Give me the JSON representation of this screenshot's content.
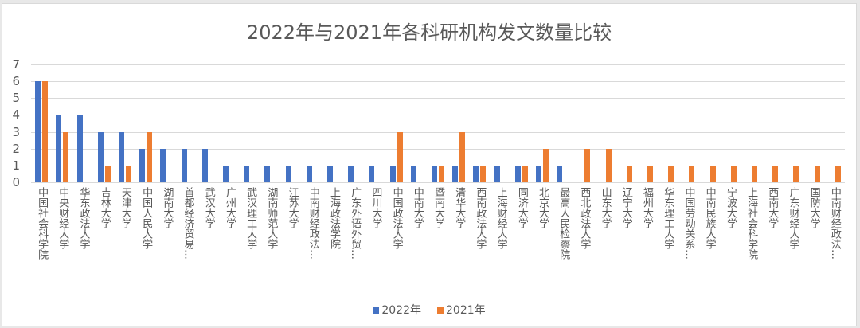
{
  "chart_data": {
    "type": "bar",
    "title": "2022年与2021年各科研机构发文数量比较",
    "xlabel": "",
    "ylabel": "",
    "ylim": [
      0,
      7
    ],
    "yticks": [
      0,
      1,
      2,
      3,
      4,
      5,
      6,
      7
    ],
    "grid": true,
    "legend_position": "bottom",
    "categories": [
      "中国社会科学院",
      "中央财经大学",
      "华东政法大学",
      "吉林大学",
      "天津大学",
      "中国人民大学",
      "湖南大学",
      "首都经济贸易…",
      "武汉大学",
      "广州大学",
      "武汉理工大学",
      "湖南师范大学",
      "江苏大学",
      "中南财经政法…",
      "上海政法学院",
      "广东外语外贸…",
      "四川大学",
      "中国政法大学",
      "中南大学",
      "暨南大学",
      "清华大学",
      "西南政法大学",
      "上海财经大学",
      "同济大学",
      "北京大学",
      "最高人民检察院",
      "西北政法大学",
      "山东大学",
      "辽宁大学",
      "福州大学",
      "华东理工大学",
      "中国劳动关系…",
      "中南民族大学",
      "宁波大学",
      "上海社会科学院",
      "西南大学",
      "广东财经大学",
      "国防大学",
      "中南财经政法…"
    ],
    "series": [
      {
        "name": "2022年",
        "color": "#4472C4",
        "values": [
          6,
          4,
          4,
          3,
          3,
          2,
          2,
          2,
          2,
          1,
          1,
          1,
          1,
          1,
          1,
          1,
          1,
          1,
          1,
          1,
          1,
          1,
          1,
          1,
          1,
          1,
          0,
          0,
          0,
          0,
          0,
          0,
          0,
          0,
          0,
          0,
          0,
          0,
          0
        ]
      },
      {
        "name": "2021年",
        "color": "#ED7D31",
        "values": [
          6,
          3,
          0,
          1,
          1,
          3,
          0,
          0,
          0,
          0,
          0,
          0,
          0,
          0,
          0,
          0,
          0,
          3,
          0,
          1,
          3,
          1,
          0,
          1,
          2,
          0,
          2,
          2,
          1,
          1,
          1,
          1,
          1,
          1,
          1,
          1,
          1,
          1,
          1
        ]
      }
    ]
  }
}
